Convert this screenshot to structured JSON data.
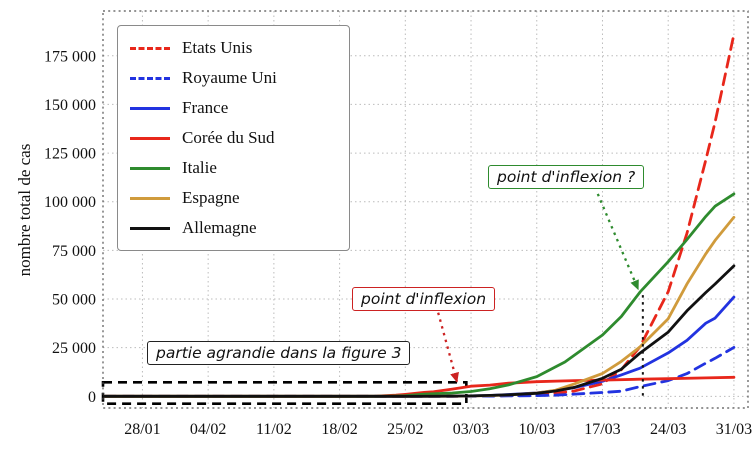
{
  "chart_data": {
    "type": "line",
    "title": "",
    "xlabel": "",
    "ylabel": "nombre total de cas",
    "xlim": [
      1.8,
      70.5
    ],
    "ylim": [
      -6000,
      198000
    ],
    "grid": true,
    "legend_position": "upper-left",
    "x_ticks": {
      "days": [
        6,
        13,
        20,
        27,
        34,
        41,
        48,
        55,
        62,
        69
      ],
      "labels": [
        "28/01",
        "04/02",
        "11/02",
        "18/02",
        "25/02",
        "03/03",
        "10/03",
        "17/03",
        "24/03",
        "31/03"
      ]
    },
    "y_ticks": {
      "values": [
        0,
        25000,
        50000,
        75000,
        100000,
        125000,
        150000,
        175000
      ],
      "labels": [
        "0",
        "25 000",
        "50 000",
        "75 000",
        "100 000",
        "125 000",
        "150 000",
        "175 000"
      ]
    },
    "series": [
      {
        "name": "Etats Unis",
        "color": "#e8271b",
        "style": "dashed",
        "points": [
          [
            2,
            1
          ],
          [
            6,
            5
          ],
          [
            13,
            11
          ],
          [
            20,
            12
          ],
          [
            27,
            13
          ],
          [
            34,
            15
          ],
          [
            39,
            75
          ],
          [
            41,
            118
          ],
          [
            43,
            221
          ],
          [
            45,
            435
          ],
          [
            48,
            959
          ],
          [
            50,
            1663
          ],
          [
            52,
            2727
          ],
          [
            55,
            6421
          ],
          [
            57,
            13677
          ],
          [
            59,
            25489
          ],
          [
            62,
            53740
          ],
          [
            64,
            83836
          ],
          [
            66,
            121478
          ],
          [
            67,
            140886
          ],
          [
            69,
            186000
          ]
        ]
      },
      {
        "name": "Royaume Uni",
        "color": "#2233e0",
        "style": "dashed",
        "points": [
          [
            2,
            0
          ],
          [
            13,
            8
          ],
          [
            27,
            9
          ],
          [
            34,
            13
          ],
          [
            39,
            36
          ],
          [
            41,
            51
          ],
          [
            43,
            115
          ],
          [
            45,
            206
          ],
          [
            48,
            373
          ],
          [
            50,
            590
          ],
          [
            52,
            1140
          ],
          [
            55,
            1950
          ],
          [
            57,
            2626
          ],
          [
            59,
            5018
          ],
          [
            62,
            8077
          ],
          [
            64,
            11658
          ],
          [
            66,
            17089
          ],
          [
            67,
            19522
          ],
          [
            69,
            25150
          ]
        ]
      },
      {
        "name": "France",
        "color": "#2233e0",
        "style": "solid",
        "points": [
          [
            2,
            3
          ],
          [
            13,
            11
          ],
          [
            27,
            12
          ],
          [
            34,
            14
          ],
          [
            39,
            130
          ],
          [
            41,
            212
          ],
          [
            43,
            423
          ],
          [
            45,
            949
          ],
          [
            48,
            1784
          ],
          [
            50,
            2876
          ],
          [
            52,
            4469
          ],
          [
            55,
            7730
          ],
          [
            57,
            10995
          ],
          [
            59,
            14459
          ],
          [
            62,
            22302
          ],
          [
            64,
            28786
          ],
          [
            66,
            37575
          ],
          [
            67,
            40174
          ],
          [
            69,
            51000
          ]
        ]
      },
      {
        "name": "Corée du Sud",
        "color": "#e8271b",
        "style": "solid",
        "points": [
          [
            2,
            2
          ],
          [
            6,
            4
          ],
          [
            13,
            16
          ],
          [
            20,
            28
          ],
          [
            27,
            31
          ],
          [
            31,
            104
          ],
          [
            33,
            602
          ],
          [
            34,
            977
          ],
          [
            36,
            2022
          ],
          [
            37,
            2337
          ],
          [
            39,
            3736
          ],
          [
            41,
            5186
          ],
          [
            43,
            5766
          ],
          [
            45,
            6767
          ],
          [
            48,
            7513
          ],
          [
            52,
            8086
          ],
          [
            55,
            8320
          ],
          [
            59,
            8799
          ],
          [
            62,
            9037
          ],
          [
            66,
            9478
          ],
          [
            69,
            9786
          ]
        ]
      },
      {
        "name": "Italie",
        "color": "#2e8b2e",
        "style": "solid",
        "points": [
          [
            2,
            0
          ],
          [
            13,
            2
          ],
          [
            27,
            3
          ],
          [
            31,
            21
          ],
          [
            34,
            320
          ],
          [
            36,
            1128
          ],
          [
            39,
            1694
          ],
          [
            41,
            2502
          ],
          [
            43,
            3858
          ],
          [
            45,
            5883
          ],
          [
            48,
            10149
          ],
          [
            50,
            15113
          ],
          [
            51,
            17660
          ],
          [
            52,
            21157
          ],
          [
            55,
            31506
          ],
          [
            57,
            41035
          ],
          [
            59,
            53578
          ],
          [
            62,
            69176
          ],
          [
            64,
            80589
          ],
          [
            66,
            92472
          ],
          [
            67,
            97689
          ],
          [
            69,
            104000
          ]
        ]
      },
      {
        "name": "Espagne",
        "color": "#d09b3c",
        "style": "solid",
        "points": [
          [
            2,
            0
          ],
          [
            27,
            2
          ],
          [
            34,
            6
          ],
          [
            39,
            84
          ],
          [
            41,
            165
          ],
          [
            43,
            374
          ],
          [
            45,
            674
          ],
          [
            48,
            1695
          ],
          [
            50,
            3146
          ],
          [
            52,
            6391
          ],
          [
            55,
            11748
          ],
          [
            57,
            17963
          ],
          [
            59,
            25374
          ],
          [
            62,
            39885
          ],
          [
            64,
            57786
          ],
          [
            66,
            73235
          ],
          [
            67,
            80110
          ],
          [
            69,
            92000
          ]
        ]
      },
      {
        "name": "Allemagne",
        "color": "#111111",
        "style": "solid",
        "points": [
          [
            2,
            0
          ],
          [
            27,
            16
          ],
          [
            34,
            17
          ],
          [
            39,
            130
          ],
          [
            41,
            196
          ],
          [
            43,
            482
          ],
          [
            45,
            799
          ],
          [
            48,
            1565
          ],
          [
            50,
            2745
          ],
          [
            52,
            4585
          ],
          [
            55,
            9257
          ],
          [
            57,
            13957
          ],
          [
            59,
            22213
          ],
          [
            62,
            32986
          ],
          [
            64,
            43938
          ],
          [
            66,
            53340
          ],
          [
            67,
            57695
          ],
          [
            69,
            67000
          ]
        ]
      }
    ],
    "zoom_rect": {
      "x1": 1.8,
      "x2": 40.5,
      "y1": -3800,
      "y2": 7200
    },
    "arrows": [
      {
        "color": "#cc2222",
        "from": [
          37.5,
          43000
        ],
        "to": [
          39.5,
          7500
        ]
      },
      {
        "color": "#2e8b2e",
        "from": [
          54.5,
          104000
        ],
        "to": [
          58.8,
          55000
        ]
      }
    ],
    "vline": {
      "day": 59.3,
      "from_val": 52000,
      "to_val": 0,
      "color": "#111111"
    },
    "annotations": {
      "zoom_label": "partie agrandie dans la figure 3",
      "inflexion_label": "point d'inflexion",
      "inflexion_question_label": "point d'inflexion ?"
    }
  }
}
